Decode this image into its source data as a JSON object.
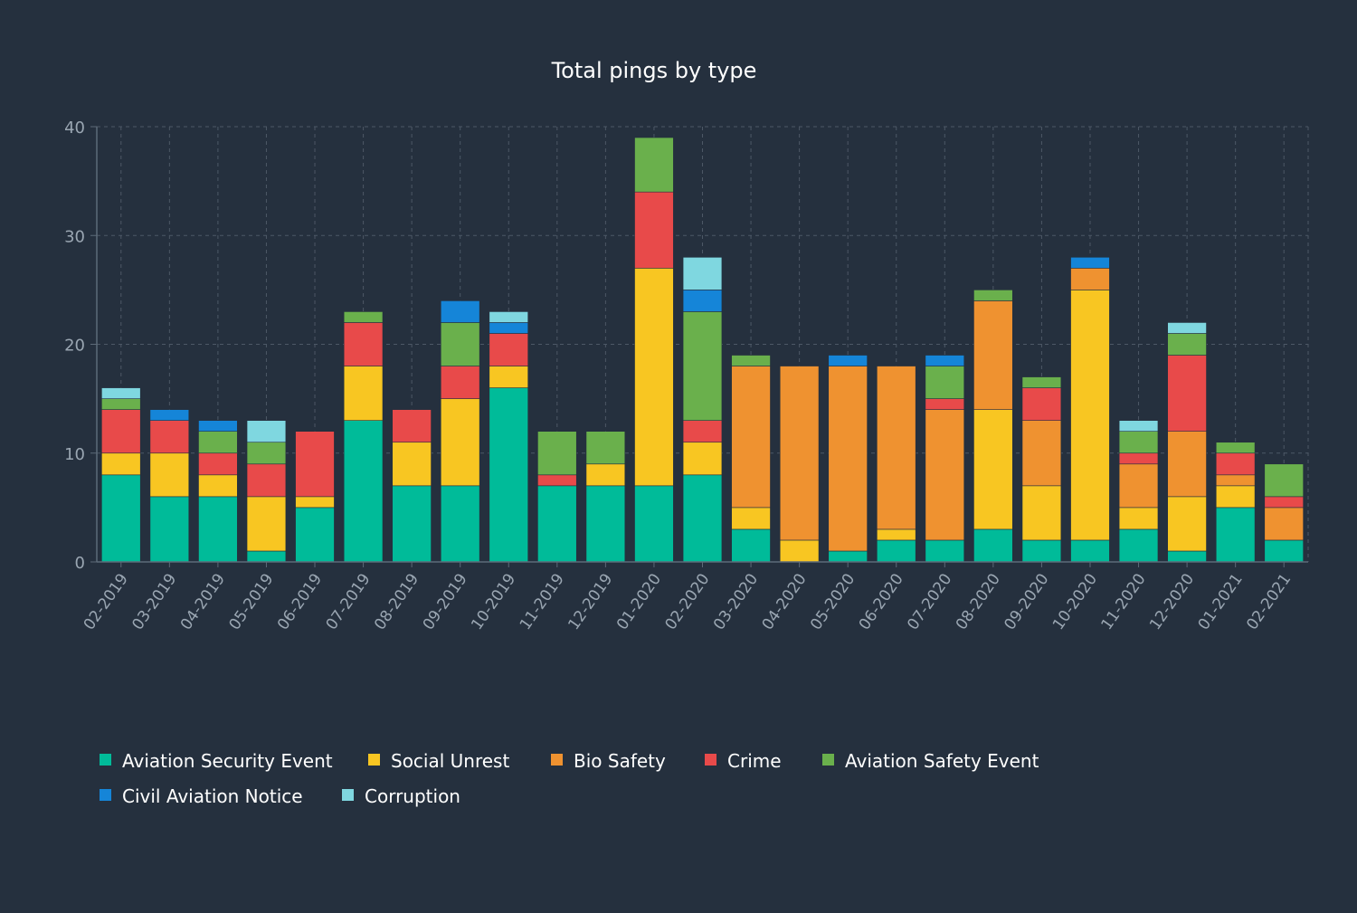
{
  "chart_data": {
    "type": "bar",
    "stacked": true,
    "title": "Total pings by type",
    "xlabel": "",
    "ylabel": "",
    "ylim": [
      0,
      40
    ],
    "yticks": [
      0,
      10,
      20,
      30,
      40
    ],
    "grid": true,
    "legend_position": "bottom-left",
    "categories": [
      "02-2019",
      "03-2019",
      "04-2019",
      "05-2019",
      "06-2019",
      "07-2019",
      "08-2019",
      "09-2019",
      "10-2019",
      "11-2019",
      "12-2019",
      "01-2020",
      "02-2020",
      "03-2020",
      "04-2020",
      "05-2020",
      "06-2020",
      "07-2020",
      "08-2020",
      "09-2020",
      "10-2020",
      "11-2020",
      "12-2020",
      "01-2021",
      "02-2021"
    ],
    "series": [
      {
        "name": "Aviation Security Event",
        "color": "#00bb99",
        "values": [
          8,
          6,
          6,
          1,
          5,
          13,
          7,
          7,
          16,
          7,
          7,
          7,
          8,
          3,
          0,
          1,
          2,
          2,
          3,
          2,
          2,
          3,
          1,
          5,
          2
        ]
      },
      {
        "name": "Social Unrest",
        "color": "#f8c622",
        "values": [
          2,
          4,
          2,
          5,
          1,
          5,
          4,
          8,
          2,
          0,
          2,
          20,
          3,
          2,
          2,
          0,
          1,
          0,
          11,
          5,
          23,
          2,
          5,
          2,
          0
        ]
      },
      {
        "name": "Bio Safety",
        "color": "#ef9230",
        "values": [
          0,
          0,
          0,
          0,
          0,
          0,
          0,
          0,
          0,
          0,
          0,
          0,
          0,
          13,
          16,
          17,
          15,
          12,
          10,
          6,
          2,
          4,
          6,
          1,
          3
        ]
      },
      {
        "name": "Crime",
        "color": "#e84a4a",
        "values": [
          4,
          3,
          2,
          3,
          6,
          4,
          3,
          3,
          3,
          1,
          0,
          7,
          2,
          0,
          0,
          0,
          0,
          1,
          0,
          3,
          0,
          1,
          7,
          2,
          1
        ]
      },
      {
        "name": "Aviation Safety Event",
        "color": "#6ab04c",
        "values": [
          1,
          0,
          2,
          2,
          0,
          1,
          0,
          4,
          0,
          4,
          3,
          5,
          10,
          1,
          0,
          0,
          0,
          3,
          1,
          1,
          0,
          2,
          2,
          1,
          3
        ]
      },
      {
        "name": "Civil Aviation Notice",
        "color": "#1585d8",
        "values": [
          0,
          1,
          1,
          0,
          0,
          0,
          0,
          2,
          1,
          0,
          0,
          0,
          2,
          0,
          0,
          1,
          0,
          1,
          0,
          0,
          1,
          0,
          0,
          0,
          0
        ]
      },
      {
        "name": "Corruption",
        "color": "#7fd7e0",
        "values": [
          1,
          0,
          0,
          2,
          0,
          0,
          0,
          0,
          1,
          0,
          0,
          0,
          3,
          0,
          0,
          0,
          0,
          0,
          0,
          0,
          0,
          1,
          1,
          0,
          0
        ]
      }
    ]
  }
}
